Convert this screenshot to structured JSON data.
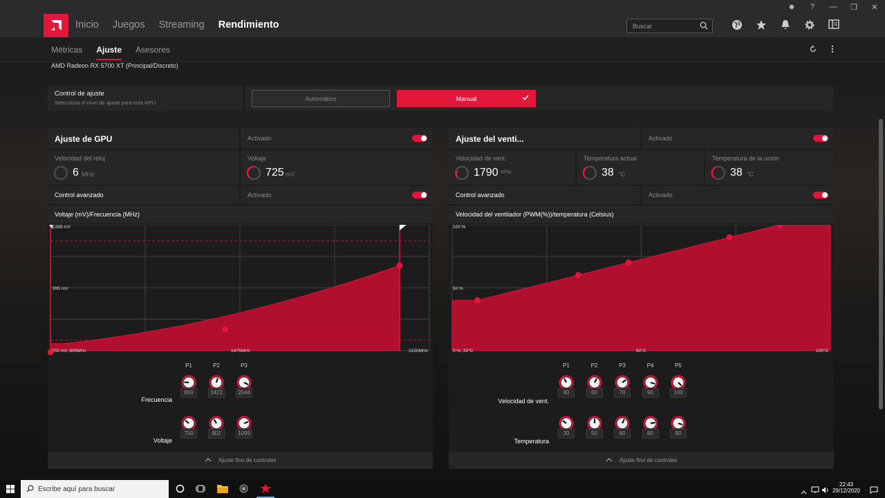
{
  "app": {
    "nav": [
      "Inicio",
      "Juegos",
      "Streaming",
      "Rendimiento"
    ],
    "active_nav": "Rendimiento",
    "search_placeholder": "Buscar",
    "subtabs": [
      "Métricas",
      "Ajuste",
      "Asesores"
    ],
    "active_subtab": "Ajuste",
    "accent": "#e0173b"
  },
  "gpu_name": "AMD Radeon RX 5700 XT (Principal/Discreto)",
  "control": {
    "label": "Control de ajuste",
    "sublabel": "Selecciona el nivel de ajuste para esta GPU",
    "auto_label": "Automático",
    "manual_label": "Manual",
    "selected": "Manual"
  },
  "gpu_panel": {
    "title": "Ajuste de GPU",
    "enabled_label": "Activado",
    "clock_label": "Velocidad del reloj",
    "clock_value": "6",
    "clock_unit": "MHz",
    "voltage_label": "Voltaje",
    "voltage_value": "725",
    "voltage_unit": "mV",
    "advanced_label": "Control avanzado",
    "advanced_state": "Activado",
    "chart_title": "Voltaje (mV)/Frecuencia (MHz)",
    "y_top": "1289 mV",
    "y_mid": "995 mV",
    "origin": "702 mV, 800MHz",
    "x_mid": "1475MHz",
    "x_max": "2150MHz",
    "points": [
      "P1",
      "P2",
      "P3"
    ],
    "freq_label": "Frecuencia",
    "freq_values": [
      "800",
      "1422",
      "2044"
    ],
    "volt_label": "Voltaje",
    "volt_values": [
      "750",
      "802",
      "1099"
    ],
    "fine_label": "Ajuste fino de controles"
  },
  "fan_panel": {
    "title": "Ajuste del venti...",
    "enabled_label": "Activado",
    "speed_label": "Velocidad de vent.",
    "speed_value": "1790",
    "speed_unit": "RPM",
    "temp_label": "Temperatura actual",
    "temp_value": "38",
    "temp_unit": "°C",
    "junction_label": "Temperatura de la unión",
    "junction_value": "38",
    "junction_unit": "°C",
    "advanced_label": "Control avanzado",
    "advanced_state": "Activado",
    "chart_title": "Velocidad del ventilador (PWM(%))/temperatura (Celsius)",
    "y_top": "100 %",
    "y_mid": "50 %",
    "origin": "0 %, 25°C",
    "x_mid": "62°C",
    "x_max": "100°C",
    "points": [
      "P1",
      "P2",
      "P3",
      "P4",
      "P5"
    ],
    "speed_row_label": "Velocidad de vent.",
    "speed_values": [
      "40",
      "60",
      "70",
      "90",
      "100"
    ],
    "temp_row_label": "Temperatura",
    "temp_values": [
      "30",
      "50",
      "60",
      "80",
      "90"
    ],
    "fine_label": "Ajuste fino de controles"
  },
  "chart_data": [
    {
      "type": "area",
      "title": "Voltaje (mV)/Frecuencia (MHz)",
      "x_range": [
        800,
        2150
      ],
      "y_range": [
        702,
        1289
      ],
      "x": [
        800,
        1422,
        2044
      ],
      "y": [
        750,
        802,
        1099
      ],
      "grid": true
    },
    {
      "type": "area",
      "title": "Velocidad del ventilador (PWM(%))/temperatura (Celsius)",
      "x_range": [
        25,
        100
      ],
      "y_range": [
        0,
        100
      ],
      "x": [
        30,
        50,
        60,
        80,
        90
      ],
      "y": [
        40,
        60,
        70,
        90,
        100
      ],
      "grid": true
    }
  ],
  "taskbar": {
    "search_placeholder": "Escribe aquí para buscar",
    "time": "22:43",
    "date": "29/12/2020"
  }
}
